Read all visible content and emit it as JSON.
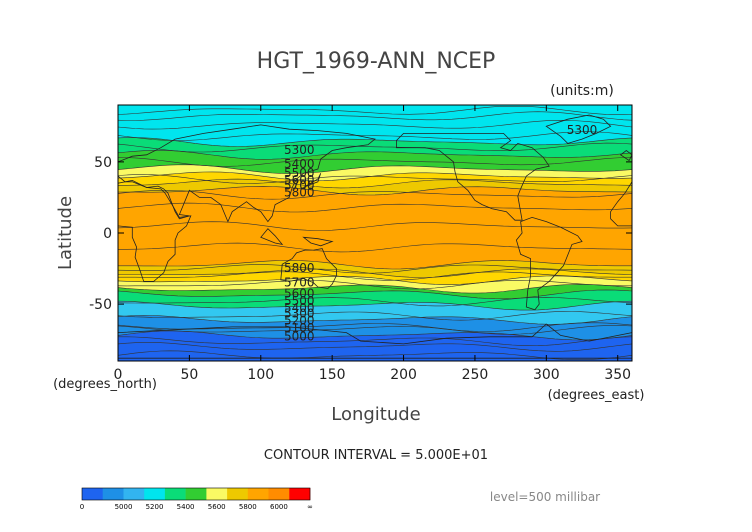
{
  "chart_data": {
    "type": "heatmap",
    "title": "HGT_1969-ANN_NCEP",
    "units": "(units:m)",
    "xlabel": "Longitude",
    "ylabel": "Latitude",
    "x_unit_label": "(degrees_east)",
    "y_unit_label": "(degrees_north)",
    "xlim": [
      0,
      360
    ],
    "ylim": [
      -90,
      90
    ],
    "xticks": [
      0,
      50,
      100,
      150,
      200,
      250,
      300,
      350
    ],
    "yticks": [
      -50,
      0,
      50
    ],
    "contour_interval_text": "CONTOUR INTERVAL = 5.000E+01",
    "level_text": "level=500 millibar",
    "contour_labels": [
      {
        "text": "5300",
        "lon": 127,
        "lat": 58
      },
      {
        "text": "5400",
        "lon": 127,
        "lat": 48
      },
      {
        "text": "5500",
        "lon": 127,
        "lat": 42
      },
      {
        "text": "5600",
        "lon": 127,
        "lat": 37
      },
      {
        "text": "5700",
        "lon": 127,
        "lat": 33
      },
      {
        "text": "5800",
        "lon": 127,
        "lat": 28
      },
      {
        "text": "5300",
        "lon": 325,
        "lat": 72
      },
      {
        "text": "5800",
        "lon": 127,
        "lat": -25
      },
      {
        "text": "5700",
        "lon": 127,
        "lat": -35
      },
      {
        "text": "5600",
        "lon": 127,
        "lat": -43
      },
      {
        "text": "5500",
        "lon": 127,
        "lat": -48
      },
      {
        "text": "5400",
        "lon": 127,
        "lat": -53
      },
      {
        "text": "5300",
        "lon": 127,
        "lat": -57
      },
      {
        "text": "5200",
        "lon": 127,
        "lat": -62
      },
      {
        "text": "5100",
        "lon": 127,
        "lat": -67
      },
      {
        "text": "5000",
        "lon": 127,
        "lat": -73
      }
    ],
    "bands": [
      {
        "from": -90,
        "to": -72,
        "color": "#1e64f0"
      },
      {
        "from": -72,
        "to": -61,
        "color": "#1e90e6"
      },
      {
        "from": -61,
        "to": -51,
        "color": "#32c8f0"
      },
      {
        "from": -51,
        "to": -43,
        "color": "#0adc78"
      },
      {
        "from": -43,
        "to": -39,
        "color": "#32cd32"
      },
      {
        "from": -39,
        "to": -33,
        "color": "#fafa64"
      },
      {
        "from": -33,
        "to": -28,
        "color": "#ffd700"
      },
      {
        "from": -28,
        "to": -22,
        "color": "#eec900"
      },
      {
        "from": -22,
        "to": 30,
        "color": "#ffa500"
      },
      {
        "from": 30,
        "to": 35,
        "color": "#eec900"
      },
      {
        "from": 35,
        "to": 40,
        "color": "#ffd700"
      },
      {
        "from": 40,
        "to": 45,
        "color": "#fafa64"
      },
      {
        "from": 45,
        "to": 55,
        "color": "#32cd32"
      },
      {
        "from": 55,
        "to": 64,
        "color": "#0adc78"
      },
      {
        "from": 64,
        "to": 90,
        "color": "#00e5ee"
      }
    ],
    "colorbar": {
      "colors": [
        "#1e64f0",
        "#1e90e6",
        "#32b4f0",
        "#00e5ee",
        "#0adc78",
        "#32cd32",
        "#fafa64",
        "#eec900",
        "#ffa500",
        "#ff8c00",
        "#ff0000"
      ],
      "labels": [
        "0",
        "5000",
        "5200",
        "5400",
        "5600",
        "5800",
        "6000",
        "∞"
      ]
    }
  }
}
